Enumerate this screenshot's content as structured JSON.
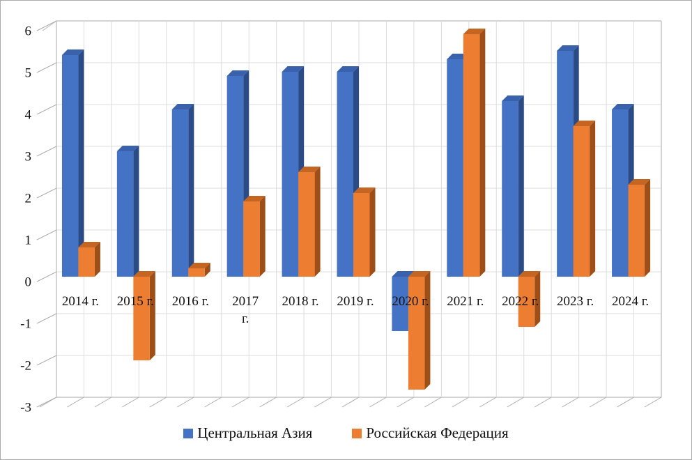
{
  "chart_data": {
    "type": "bar",
    "variant": "3d-clustered-column",
    "categories": [
      "2014 г.",
      "2015 г.",
      "2016 г.",
      "2017 г.",
      "2018 г.",
      "2019 г.",
      "2020 г.",
      "2021 г.",
      "2022 г.",
      "2023 г.",
      "2024 г."
    ],
    "wrapped_category_index": 3,
    "series": [
      {
        "name": "Центральная Азия",
        "color_front": "#4472C4",
        "color_top": "#3A62AC",
        "color_side": "#2B4B87",
        "values": [
          5.3,
          3.0,
          4.0,
          4.8,
          4.9,
          4.9,
          -1.3,
          5.2,
          4.2,
          5.4,
          4.0
        ]
      },
      {
        "name": "Российская Федерация",
        "color_front": "#ED7D31",
        "color_top": "#C56522",
        "color_side": "#9E4E17",
        "values": [
          0.7,
          -2.0,
          0.2,
          1.8,
          2.5,
          2.0,
          -2.7,
          5.8,
          -1.2,
          3.6,
          2.2
        ]
      }
    ],
    "ylim": [
      -3,
      6
    ],
    "y_tick_step": 1,
    "y_ticks": [
      "6",
      "5",
      "4",
      "3",
      "2",
      "1",
      "0",
      "-1",
      "-2",
      "-3"
    ],
    "grid": true,
    "gridline_color": "#DCDCDC",
    "wall_edge_color": "#C6C6C6",
    "tick_color": "#ACACAC",
    "legend_position": "bottom"
  },
  "legend": {
    "items": [
      {
        "label": "Центральная Азия",
        "color": "#4472C4"
      },
      {
        "label": "Российская Федерация",
        "color": "#ED7D31"
      }
    ]
  }
}
